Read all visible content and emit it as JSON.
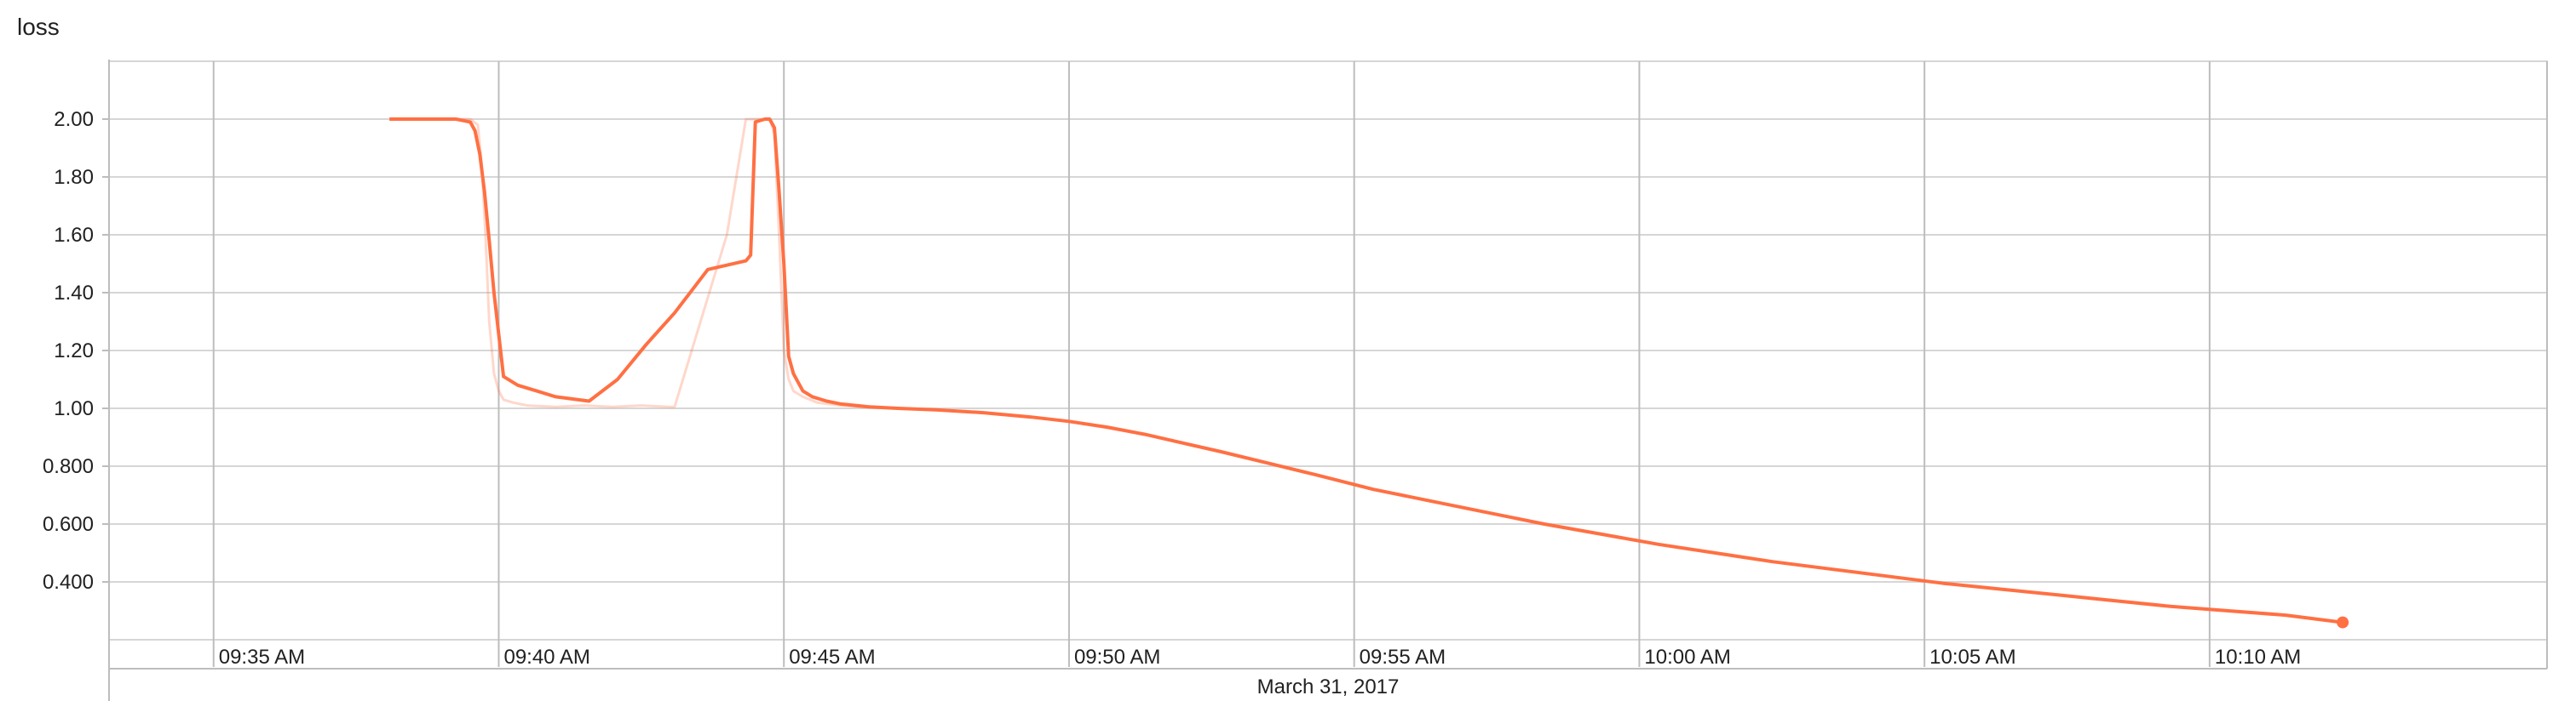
{
  "chart_data": {
    "type": "line",
    "title": "loss",
    "xlabel": "March 31, 2017",
    "ylabel": "",
    "x_unit": "time",
    "xlim": [
      "09:33:10",
      "10:15:55"
    ],
    "ylim": [
      0.2,
      2.2
    ],
    "x_ticks": [
      "09:35 AM",
      "09:40 AM",
      "09:45 AM",
      "09:50 AM",
      "09:55 AM",
      "10:00 AM",
      "10:05 AM",
      "10:10 AM"
    ],
    "y_ticks": [
      "0.400",
      "0.600",
      "0.800",
      "1.00",
      "1.20",
      "1.40",
      "1.60",
      "1.80",
      "2.00"
    ],
    "y_tick_values": [
      0.4,
      0.6,
      0.8,
      1.0,
      1.2,
      1.4,
      1.6,
      1.8,
      2.0
    ],
    "grid": true,
    "legend": "none",
    "colors": {
      "smoothed": "#ff7043",
      "raw": "#ff7043",
      "grid": "#d6d6d6",
      "axis": "#bdbdbd",
      "text": "#212121"
    },
    "series": [
      {
        "kind": "smoothed",
        "x": [
          "09:38:05",
          "09:39:15",
          "09:39:30",
          "09:39:35",
          "09:39:40",
          "09:39:45",
          "09:39:50",
          "09:39:55",
          "09:40:05",
          "09:40:20",
          "09:40:40",
          "09:41:00",
          "09:41:35",
          "09:42:05",
          "09:42:35",
          "09:43:05",
          "09:43:40",
          "09:44:20",
          "09:44:25",
          "09:44:30",
          "09:44:40",
          "09:44:45",
          "09:44:50",
          "09:44:55",
          "09:45:00",
          "09:45:05",
          "09:45:10",
          "09:45:20",
          "09:45:30",
          "09:45:45",
          "09:46:00",
          "09:46:30",
          "09:47:00",
          "09:47:40",
          "09:48:30",
          "09:49:20",
          "09:50:00",
          "09:50:40",
          "09:51:20",
          "09:52:00",
          "09:52:40",
          "09:53:30",
          "09:54:20",
          "09:55:20",
          "09:56:20",
          "09:57:20",
          "09:58:20",
          "09:59:20",
          "10:00:20",
          "10:01:20",
          "10:02:20",
          "10:03:20",
          "10:04:20",
          "10:05:20",
          "10:06:20",
          "10:07:20",
          "10:08:20",
          "10:09:20",
          "10:10:20",
          "10:11:20",
          "10:12:20"
        ],
        "values": [
          2.0,
          2.0,
          1.99,
          1.96,
          1.88,
          1.75,
          1.58,
          1.4,
          1.11,
          1.08,
          1.06,
          1.04,
          1.025,
          1.1,
          1.22,
          1.33,
          1.48,
          1.51,
          1.53,
          1.99,
          2.0,
          2.0,
          1.97,
          1.75,
          1.5,
          1.18,
          1.12,
          1.06,
          1.04,
          1.025,
          1.015,
          1.005,
          1.0,
          0.995,
          0.985,
          0.97,
          0.955,
          0.935,
          0.91,
          0.88,
          0.85,
          0.81,
          0.77,
          0.72,
          0.68,
          0.64,
          0.6,
          0.565,
          0.53,
          0.5,
          0.47,
          0.445,
          0.42,
          0.395,
          0.375,
          0.355,
          0.335,
          0.315,
          0.3,
          0.285,
          0.26
        ]
      },
      {
        "kind": "raw",
        "x": [
          "09:38:05",
          "09:39:20",
          "09:39:30",
          "09:39:38",
          "09:39:42",
          "09:39:46",
          "09:39:50",
          "09:39:55",
          "09:40:00",
          "09:40:05",
          "09:40:15",
          "09:40:30",
          "09:41:00",
          "09:41:30",
          "09:42:00",
          "09:42:30",
          "09:43:00",
          "09:43:05",
          "09:44:00",
          "09:44:20",
          "09:44:30",
          "09:44:40",
          "09:44:45",
          "09:44:50",
          "09:44:55",
          "09:45:00",
          "09:45:05",
          "09:45:10",
          "09:45:20",
          "09:45:35",
          "09:46:00",
          "09:46:30",
          "09:47:00",
          "09:47:40",
          "09:48:30",
          "09:49:20",
          "09:50:00",
          "09:50:40",
          "09:51:20",
          "09:52:00",
          "09:52:40",
          "09:53:30",
          "09:54:20",
          "09:55:20",
          "09:56:20",
          "09:57:20",
          "09:58:20",
          "09:59:20",
          "10:00:20",
          "10:01:20",
          "10:02:20",
          "10:03:20",
          "10:04:20",
          "10:05:20",
          "10:06:20",
          "10:07:20",
          "10:08:20",
          "10:09:20",
          "10:10:20",
          "10:11:20",
          "10:12:20"
        ],
        "values": [
          2.0,
          2.0,
          2.0,
          1.98,
          1.85,
          1.6,
          1.3,
          1.12,
          1.06,
          1.03,
          1.02,
          1.01,
          1.005,
          1.01,
          1.005,
          1.01,
          1.005,
          1.005,
          1.6,
          2.0,
          2.0,
          2.0,
          2.0,
          1.95,
          1.6,
          1.2,
          1.1,
          1.06,
          1.04,
          1.02,
          1.01,
          1.005,
          1.0,
          0.995,
          0.985,
          0.97,
          0.955,
          0.935,
          0.91,
          0.88,
          0.85,
          0.81,
          0.77,
          0.72,
          0.68,
          0.64,
          0.6,
          0.565,
          0.53,
          0.5,
          0.47,
          0.445,
          0.42,
          0.395,
          0.375,
          0.355,
          0.335,
          0.315,
          0.3,
          0.285,
          0.26
        ]
      }
    ]
  }
}
